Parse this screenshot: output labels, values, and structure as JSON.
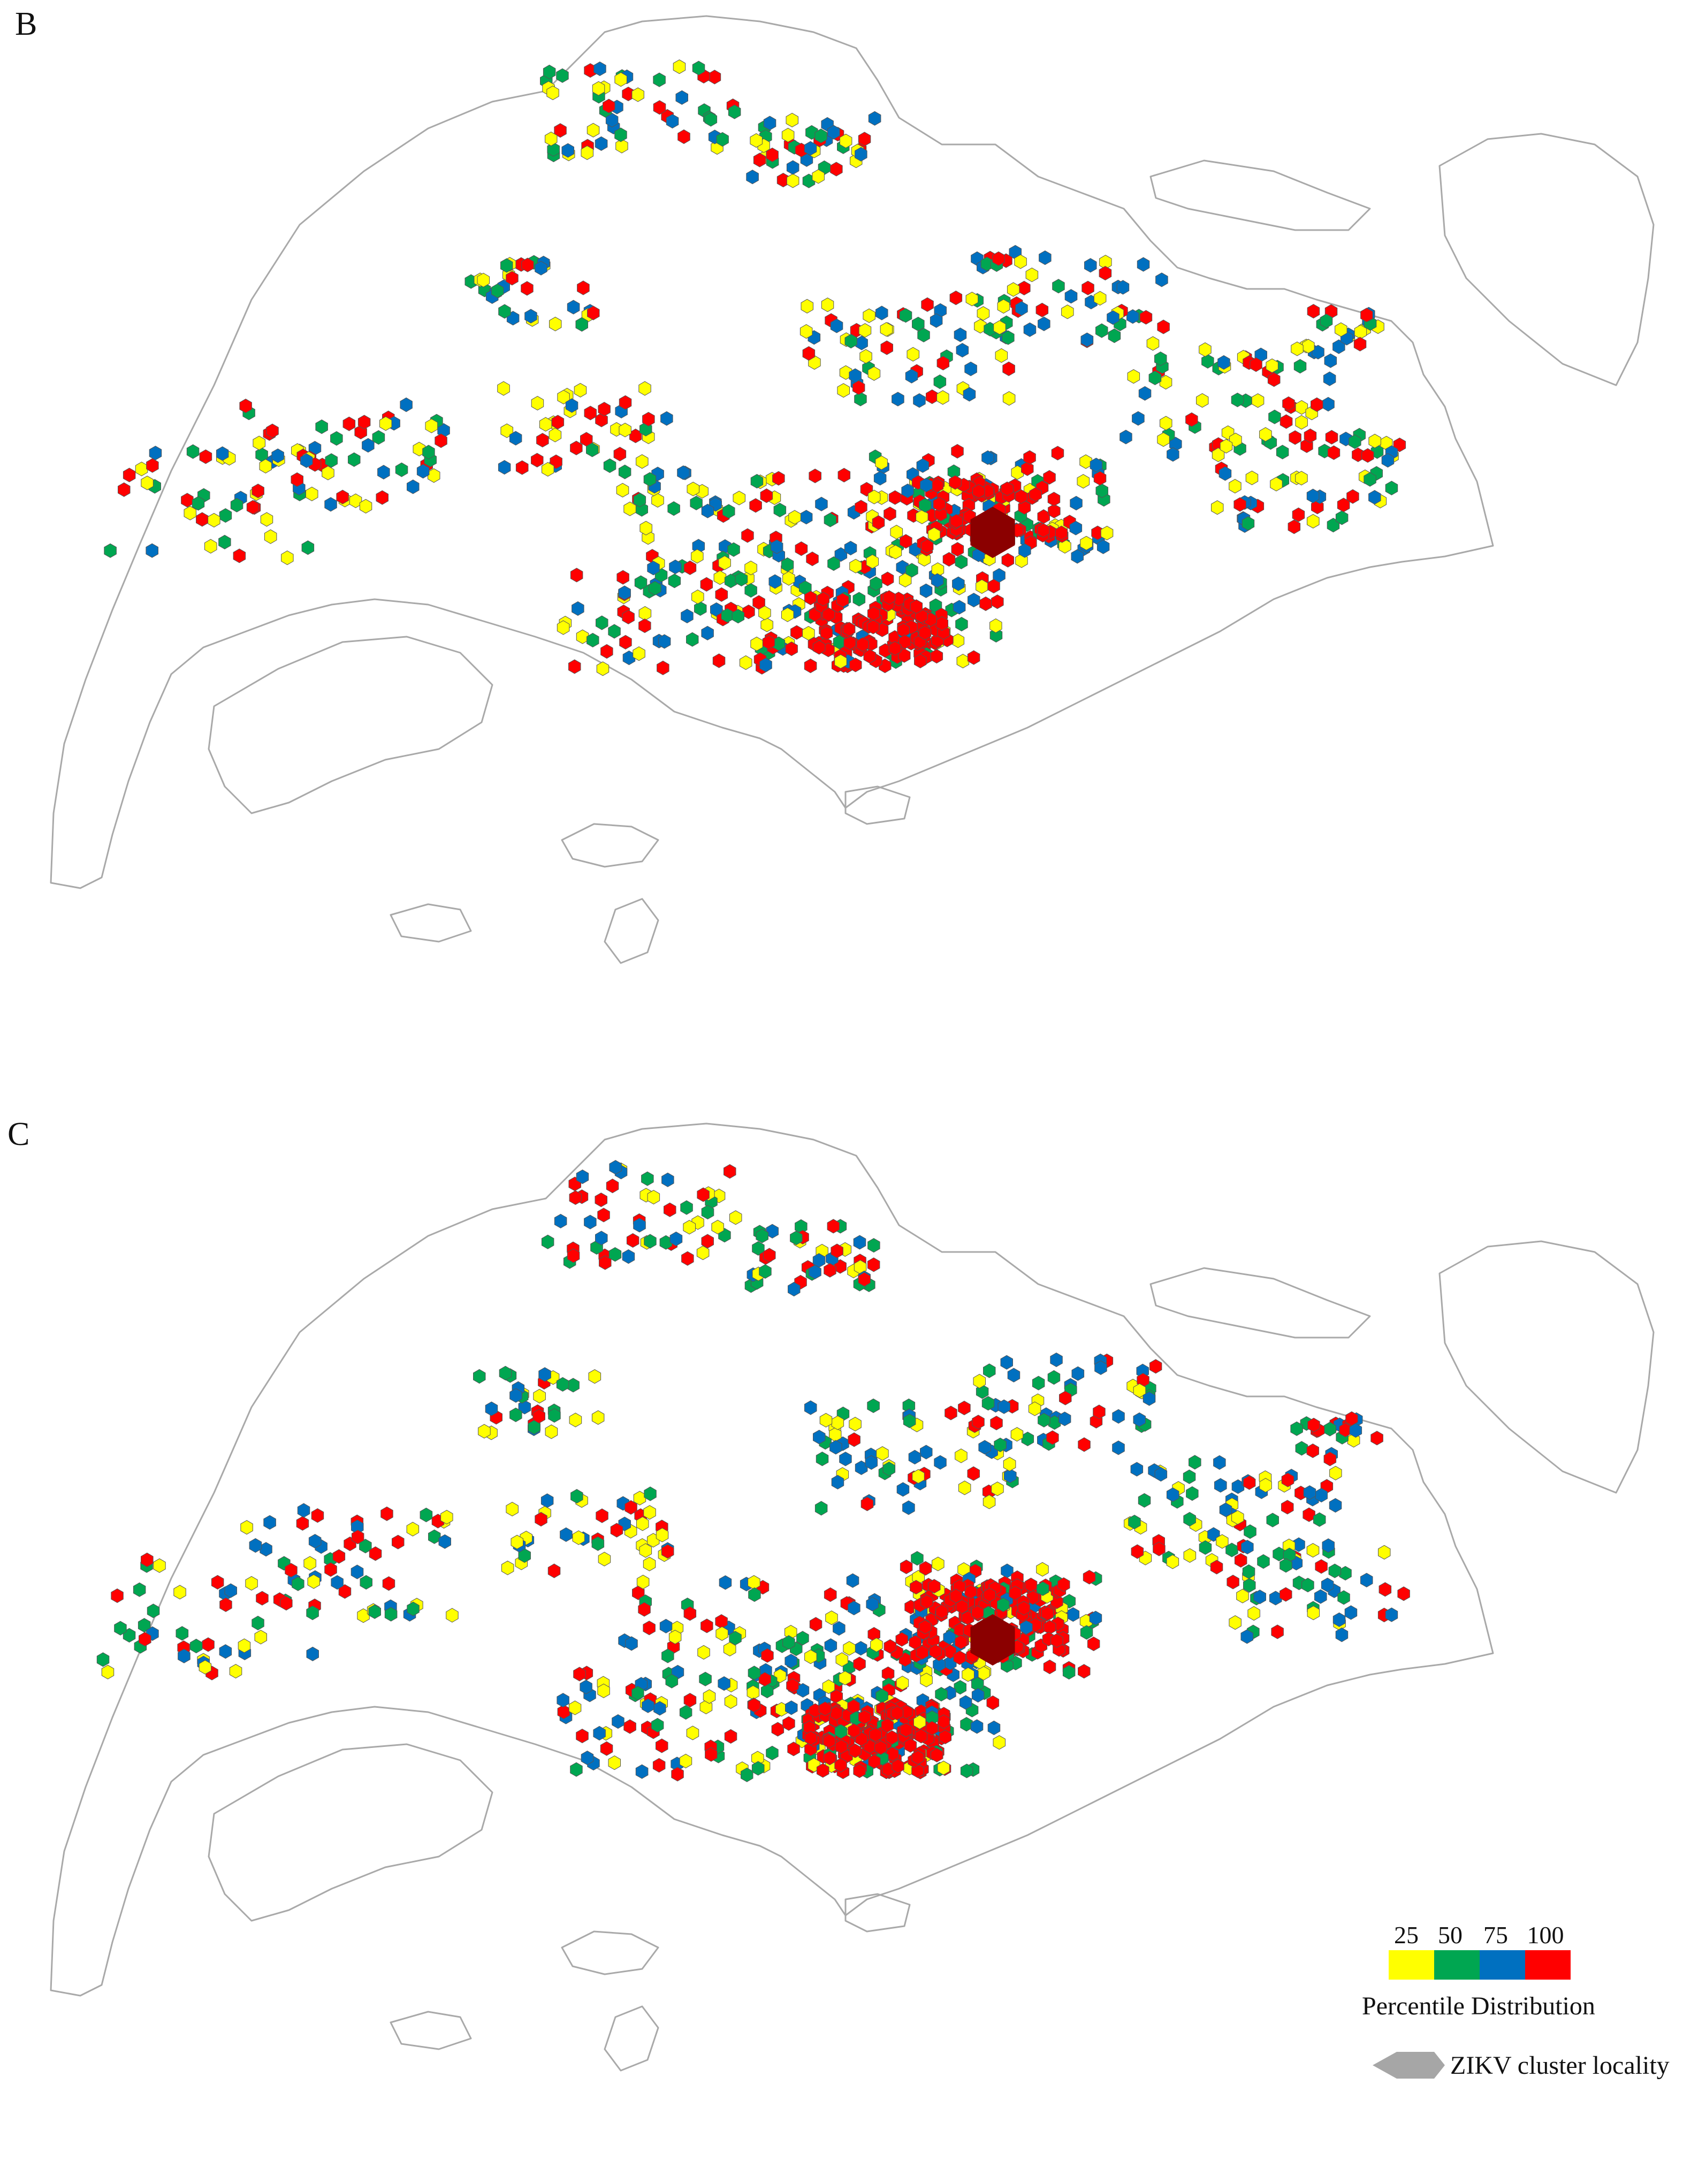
{
  "panels": [
    {
      "label": "B"
    },
    {
      "label": "C"
    }
  ],
  "legend": {
    "breaks": [
      "25",
      "50",
      "75",
      "100"
    ],
    "colors": [
      "#ffff00",
      "#00a651",
      "#0070c0",
      "#ff0000"
    ],
    "title": "Percentile Distribution",
    "cluster_label": "ZIKV cluster locality",
    "cluster_color": "#a6a6a6",
    "cluster_core_color": "#8b0000"
  },
  "chart_data": {
    "type": "heatmap",
    "categories": [
      "25",
      "50",
      "75",
      "100"
    ],
    "series": [
      {
        "name": "B",
        "hotspot_class": "100"
      },
      {
        "name": "C",
        "hotspot_class": "100"
      }
    ]
  }
}
